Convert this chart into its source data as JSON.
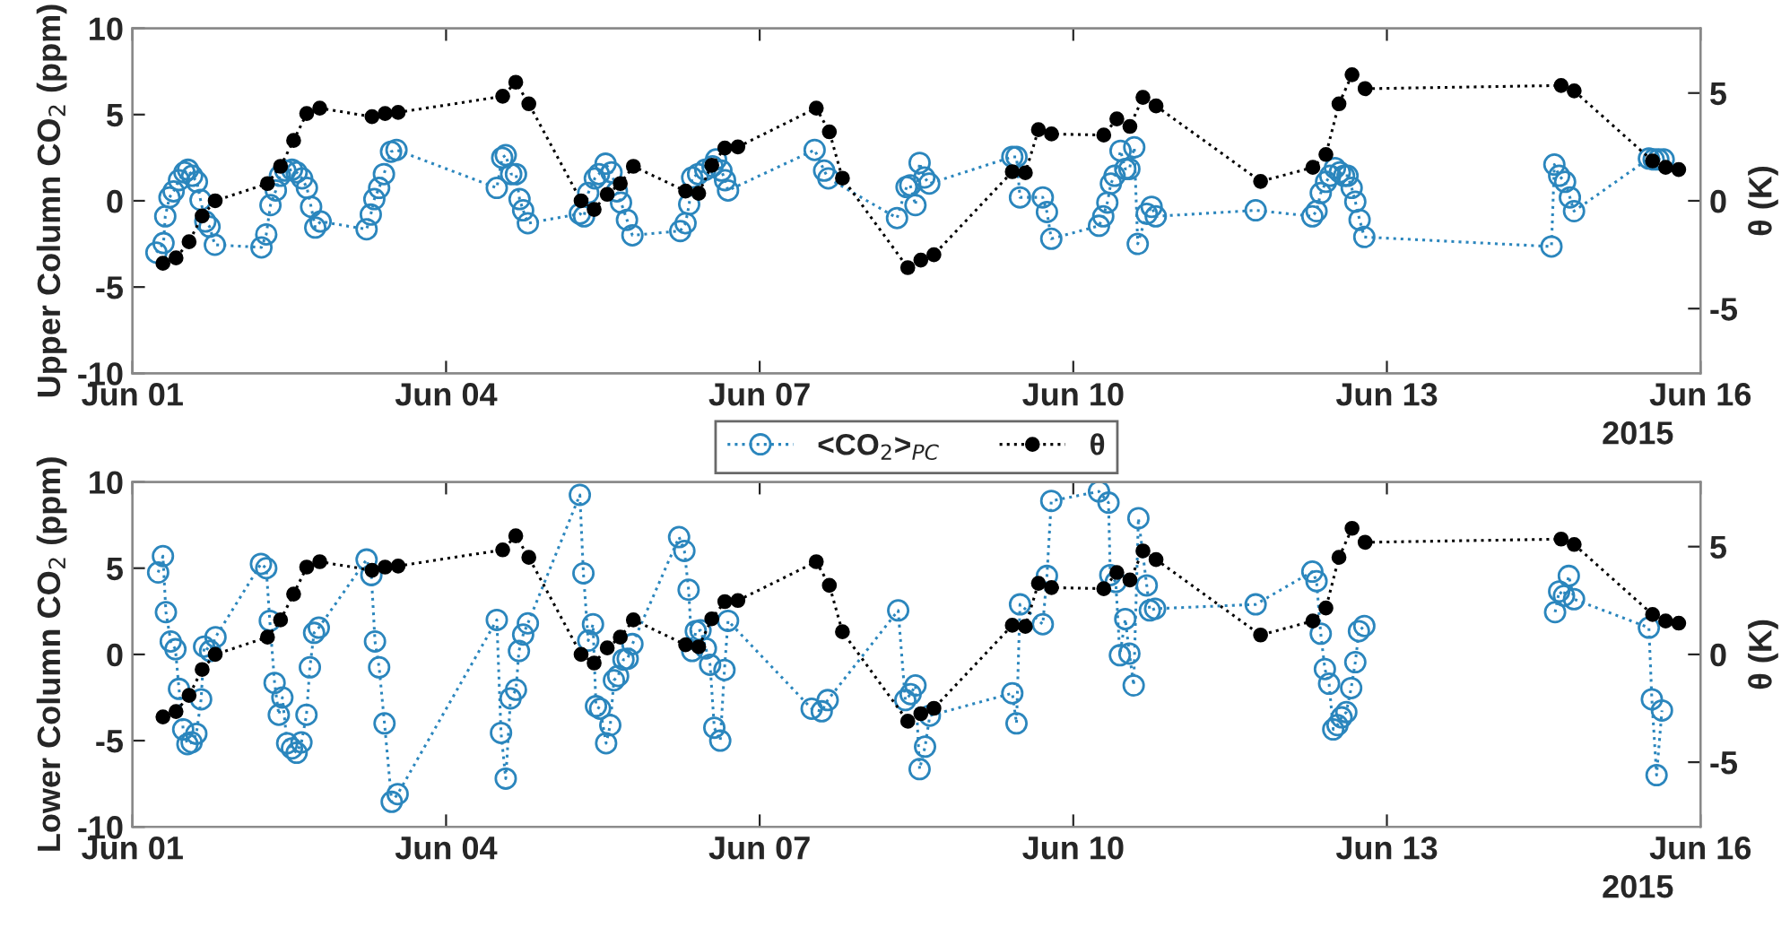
{
  "chart_data": [
    {
      "type": "line",
      "ylabel": "Upper Column CO$_{2}$ (ppm)",
      "y2label": "θ (K)",
      "annotations": [
        "2015"
      ],
      "xlim": [
        "2015-06-01",
        "2015-06-16"
      ],
      "xticks": [
        {
          "value": "2015-06-01",
          "label": "Jun 01"
        },
        {
          "value": "2015-06-04",
          "label": "Jun 04"
        },
        {
          "value": "2015-06-07",
          "label": "Jun 07"
        },
        {
          "value": "2015-06-10",
          "label": "Jun 10"
        },
        {
          "value": "2015-06-13",
          "label": "Jun 13"
        },
        {
          "value": "2015-06-16",
          "label": "Jun 16"
        }
      ],
      "ylim": [
        -10,
        10
      ],
      "yticks": [
        -10,
        -5,
        0,
        5,
        10
      ],
      "y2lim": [
        -8,
        8
      ],
      "y2ticks": [
        -5,
        0,
        5
      ],
      "grid": false,
      "legend": false,
      "marker": "circle",
      "line_style": "dotted",
      "series": [
        {
          "color": "#2b86bd",
          "x": [
            "2015-06-01T05:30",
            "2015-06-01T07:08",
            "2015-06-01T07:32",
            "2015-06-01T08:30",
            "2015-06-01T09:27",
            "2015-06-01T10:41",
            "2015-06-01T11:56",
            "2015-06-01T12:45",
            "2015-06-01T13:42",
            "2015-06-01T14:48",
            "2015-06-01T15:38",
            "2015-06-01T16:44",
            "2015-06-01T17:42",
            "2015-06-01T18:55",
            "2015-06-02T05:37",
            "2015-06-02T06:43",
            "2015-06-02T07:41",
            "2015-06-02T08:55",
            "2015-06-02T09:52",
            "2015-06-02T11:06",
            "2015-06-02T12:37",
            "2015-06-02T13:42",
            "2015-06-02T14:57",
            "2015-06-02T16:03",
            "2015-06-02T17:01",
            "2015-06-02T17:58",
            "2015-06-02T19:12",
            "2015-06-03T05:45",
            "2015-06-03T06:43",
            "2015-06-03T07:32",
            "2015-06-03T08:38",
            "2015-06-03T09:44",
            "2015-06-03T11:22",
            "2015-06-03T12:37",
            "2015-06-04T11:39",
            "2015-06-04T12:53",
            "2015-06-04T13:42",
            "2015-06-04T14:57",
            "2015-06-04T16:03",
            "2015-06-04T16:52",
            "2015-06-04T17:42",
            "2015-06-04T18:47",
            "2015-06-05T06:43",
            "2015-06-05T07:41",
            "2015-06-05T08:38",
            "2015-06-05T10:09",
            "2015-06-05T11:06",
            "2015-06-05T12:37",
            "2015-06-05T13:59",
            "2015-06-05T15:13",
            "2015-06-05T16:10",
            "2015-06-05T17:32",
            "2015-06-05T18:47",
            "2015-06-06T05:46",
            "2015-06-06T06:59",
            "2015-06-06T07:49",
            "2015-06-06T08:30",
            "2015-06-06T09:52",
            "2015-06-06T11:31",
            "2015-06-06T13:10",
            "2015-06-06T13:59",
            "2015-06-06T15:13",
            "2015-06-06T16:03",
            "2015-06-06T16:44",
            "2015-06-07T12:37",
            "2015-06-07T14:48",
            "2015-06-07T15:46",
            "2015-06-08T07:32",
            "2015-06-08T09:43",
            "2015-06-08T10:34",
            "2015-06-08T11:46",
            "2015-06-08T12:43",
            "2015-06-08T13:49",
            "2015-06-08T14:56",
            "2015-06-09T10:00",
            "2015-06-09T10:58",
            "2015-06-09T11:46",
            "2015-06-09T17:00",
            "2015-06-09T17:57",
            "2015-06-09T18:57",
            "2015-06-10T05:54",
            "2015-06-10T06:53",
            "2015-06-10T07:49",
            "2015-06-10T08:38",
            "2015-06-10T09:29",
            "2015-06-10T10:51",
            "2015-06-10T11:56",
            "2015-06-10T12:53",
            "2015-06-10T14:00",
            "2015-06-10T14:48",
            "2015-06-10T16:52",
            "2015-06-10T17:59",
            "2015-06-10T18:56",
            "2015-06-11T17:52",
            "2015-06-12T06:53",
            "2015-06-12T07:51",
            "2015-06-12T08:49",
            "2015-06-12T10:02",
            "2015-06-12T10:59",
            "2015-06-12T12:05",
            "2015-06-12T13:12",
            "2015-06-12T14:10",
            "2015-06-12T14:58",
            "2015-06-12T15:55",
            "2015-06-12T16:45",
            "2015-06-12T17:44",
            "2015-06-12T18:49",
            "2015-06-14T13:47",
            "2015-06-14T14:27",
            "2015-06-14T15:33",
            "2015-06-14T16:55",
            "2015-06-14T18:01",
            "2015-06-14T18:58",
            "2015-06-15T12:09",
            "2015-06-15T13:15",
            "2015-06-15T14:20",
            "2015-06-15T15:33"
          ],
          "values": [
            -3.0,
            -2.45,
            -0.9,
            0.2,
            0.55,
            1.2,
            1.65,
            1.8,
            1.45,
            1.1,
            0.05,
            -1.2,
            -1.5,
            -2.55,
            -2.7,
            -1.95,
            -0.25,
            0.6,
            1.45,
            1.75,
            1.8,
            1.65,
            1.3,
            0.75,
            -0.35,
            -1.55,
            -1.2,
            -1.65,
            -0.8,
            0.1,
            0.75,
            1.55,
            2.85,
            2.95,
            0.75,
            2.5,
            2.65,
            1.55,
            1.55,
            0.1,
            -0.55,
            -1.3,
            -0.75,
            -0.9,
            0.45,
            1.3,
            1.55,
            2.15,
            1.65,
            0.55,
            -0.1,
            -1.1,
            -2.0,
            -1.75,
            -1.3,
            -0.2,
            1.35,
            1.55,
            1.8,
            2.0,
            2.4,
            1.75,
            1.2,
            0.6,
            2.95,
            1.75,
            1.3,
            -1.0,
            0.8,
            0.9,
            -0.25,
            2.2,
            1.35,
            1.0,
            2.55,
            2.55,
            0.2,
            0.2,
            -0.65,
            -2.2,
            -1.45,
            -0.9,
            -0.1,
            1.0,
            1.45,
            2.9,
            1.85,
            1.85,
            3.1,
            -2.5,
            -0.75,
            -0.35,
            -0.9,
            -0.55,
            -0.9,
            -0.6,
            0.45,
            1.1,
            1.45,
            1.9,
            1.65,
            1.45,
            1.45,
            0.75,
            -0.05,
            -1.1,
            -2.1,
            -2.65,
            2.1,
            1.45,
            1.1,
            0.2,
            -0.6,
            2.45,
            2.4,
            2.4,
            2.4
          ]
        },
        {
          "color": "#000000",
          "axis": "y2",
          "x": [
            "2015-06-01T07:00",
            "2015-06-01T10:00",
            "2015-06-01T13:00",
            "2015-06-01T16:00",
            "2015-06-01T19:00",
            "2015-06-02T07:00",
            "2015-06-02T10:00",
            "2015-06-02T13:00",
            "2015-06-02T16:00",
            "2015-06-02T19:00",
            "2015-06-03T07:00",
            "2015-06-03T10:00",
            "2015-06-03T13:00",
            "2015-06-04T13:00",
            "2015-06-04T16:00",
            "2015-06-04T19:00",
            "2015-06-05T07:00",
            "2015-06-05T10:00",
            "2015-06-05T13:00",
            "2015-06-05T16:00",
            "2015-06-05T19:00",
            "2015-06-06T07:00",
            "2015-06-06T10:00",
            "2015-06-06T13:00",
            "2015-06-06T16:00",
            "2015-06-06T19:00",
            "2015-06-07T13:00",
            "2015-06-07T16:00",
            "2015-06-07T19:00",
            "2015-06-08T10:00",
            "2015-06-08T13:00",
            "2015-06-08T16:00",
            "2015-06-09T10:00",
            "2015-06-09T13:00",
            "2015-06-09T16:00",
            "2015-06-09T19:00",
            "2015-06-10T07:00",
            "2015-06-10T10:00",
            "2015-06-10T13:00",
            "2015-06-10T16:00",
            "2015-06-10T19:00",
            "2015-06-11T19:00",
            "2015-06-12T07:00",
            "2015-06-12T10:00",
            "2015-06-12T13:00",
            "2015-06-12T16:00",
            "2015-06-12T19:00",
            "2015-06-14T16:00",
            "2015-06-14T19:00",
            "2015-06-15T13:00",
            "2015-06-15T16:00",
            "2015-06-15T19:00"
          ],
          "values": [
            -2.9,
            -2.65,
            -1.9,
            -0.7,
            0.0,
            0.8,
            1.6,
            2.8,
            4.05,
            4.3,
            3.9,
            4.05,
            4.1,
            4.85,
            5.5,
            4.5,
            0.0,
            -0.4,
            0.3,
            0.8,
            1.6,
            0.45,
            0.35,
            1.65,
            2.45,
            2.5,
            4.3,
            3.2,
            1.05,
            -3.1,
            -2.75,
            -2.5,
            1.35,
            1.3,
            3.3,
            3.1,
            3.05,
            3.8,
            3.45,
            4.8,
            4.4,
            0.9,
            1.55,
            2.15,
            4.5,
            5.85,
            5.2,
            5.35,
            5.1,
            1.85,
            1.55,
            1.45
          ]
        }
      ]
    },
    {
      "type": "line",
      "ylabel": "Lower Column CO$_{2}$ (ppm)",
      "y2label": "θ (K)",
      "annotations": [
        "2015"
      ],
      "xlim": [
        "2015-06-01",
        "2015-06-16"
      ],
      "xticks": [
        {
          "value": "2015-06-01",
          "label": "Jun 01"
        },
        {
          "value": "2015-06-04",
          "label": "Jun 04"
        },
        {
          "value": "2015-06-07",
          "label": "Jun 07"
        },
        {
          "value": "2015-06-10",
          "label": "Jun 10"
        },
        {
          "value": "2015-06-13",
          "label": "Jun 13"
        },
        {
          "value": "2015-06-16",
          "label": "Jun 16"
        }
      ],
      "ylim": [
        -10,
        10
      ],
      "yticks": [
        -10,
        -5,
        0,
        5,
        10
      ],
      "y2lim": [
        -8,
        8
      ],
      "y2ticks": [
        -5,
        0,
        5
      ],
      "grid": false,
      "legend": "top",
      "marker": "circle",
      "line_style": "dotted",
      "series": [
        {
          "name": "<CO$_{2}$>$_{PC}$",
          "color": "#2b86bd",
          "x": [
            "2015-06-01T05:54",
            "2015-06-01T07:00",
            "2015-06-01T07:41",
            "2015-06-01T08:47",
            "2015-06-01T09:52",
            "2015-06-01T10:41",
            "2015-06-01T11:39",
            "2015-06-01T12:37",
            "2015-06-01T13:35",
            "2015-06-01T14:40",
            "2015-06-01T15:46",
            "2015-06-01T16:27",
            "2015-06-01T17:50",
            "2015-06-01T19:04",
            "2015-06-02T05:30",
            "2015-06-02T06:43",
            "2015-06-02T07:32",
            "2015-06-02T08:38",
            "2015-06-02T09:36",
            "2015-06-02T10:25",
            "2015-06-02T11:31",
            "2015-06-02T12:37",
            "2015-06-02T13:42",
            "2015-06-02T14:48",
            "2015-06-02T15:57",
            "2015-06-02T16:44",
            "2015-06-02T17:42",
            "2015-06-02T18:47",
            "2015-06-03T05:45",
            "2015-06-03T06:51",
            "2015-06-03T07:41",
            "2015-06-03T08:38",
            "2015-06-03T09:52",
            "2015-06-03T11:31",
            "2015-06-03T12:53",
            "2015-06-04T11:39",
            "2015-06-04T12:37",
            "2015-06-04T13:42",
            "2015-06-04T14:48",
            "2015-06-04T16:03",
            "2015-06-04T16:44",
            "2015-06-04T17:42",
            "2015-06-04T18:47",
            "2015-06-05T06:43",
            "2015-06-05T07:32",
            "2015-06-05T08:38",
            "2015-06-05T09:44",
            "2015-06-05T10:25",
            "2015-06-05T11:22",
            "2015-06-05T12:45",
            "2015-06-05T13:42",
            "2015-06-05T14:32",
            "2015-06-05T15:30",
            "2015-06-05T16:44",
            "2015-06-05T17:42",
            "2015-06-05T18:47",
            "2015-06-06T05:30",
            "2015-06-06T06:43",
            "2015-06-06T07:41",
            "2015-06-06T08:30",
            "2015-06-06T09:20",
            "2015-06-06T10:25",
            "2015-06-06T11:39",
            "2015-06-06T12:37",
            "2015-06-06T13:35",
            "2015-06-06T14:57",
            "2015-06-06T15:55",
            "2015-06-06T16:44",
            "2015-06-07T11:56",
            "2015-06-07T14:15",
            "2015-06-07T15:37",
            "2015-06-08T07:48",
            "2015-06-08T09:26",
            "2015-06-08T10:39",
            "2015-06-08T11:46",
            "2015-06-08T12:43",
            "2015-06-08T13:58",
            "2015-06-08T15:04",
            "2015-06-09T10:00",
            "2015-06-09T10:58",
            "2015-06-09T11:46",
            "2015-06-09T17:00",
            "2015-06-09T17:57",
            "2015-06-09T18:57",
            "2015-06-10T05:54",
            "2015-06-10T08:05",
            "2015-06-10T08:30",
            "2015-06-10T09:45",
            "2015-06-10T10:42",
            "2015-06-10T11:56",
            "2015-06-10T12:53",
            "2015-06-10T13:52",
            "2015-06-10T14:57",
            "2015-06-10T16:52",
            "2015-06-10T17:34",
            "2015-06-10T18:47",
            "2015-06-11T17:52",
            "2015-06-12T06:53",
            "2015-06-12T07:51",
            "2015-06-12T08:49",
            "2015-06-12T09:46",
            "2015-06-12T10:44",
            "2015-06-12T11:41",
            "2015-06-12T12:39",
            "2015-06-12T13:36",
            "2015-06-12T14:41",
            "2015-06-12T15:48",
            "2015-06-12T16:45",
            "2015-06-12T17:35",
            "2015-06-12T18:49",
            "2015-06-13T12:00",
            "2015-06-14T14:37",
            "2015-06-14T15:33",
            "2015-06-14T16:39",
            "2015-06-14T17:46",
            "2015-06-14T18:58",
            "2015-06-15T12:09",
            "2015-06-15T12:50",
            "2015-06-15T13:55",
            "2015-06-15T15:09"
          ],
          "values": [
            4.75,
            5.7,
            2.45,
            0.75,
            0.3,
            -2.0,
            -4.35,
            -5.2,
            -5.1,
            -4.6,
            -2.6,
            0.45,
            0.2,
            1.0,
            5.25,
            5.0,
            1.95,
            -1.65,
            -3.5,
            -2.5,
            -5.15,
            -5.45,
            -5.7,
            -5.1,
            -3.5,
            -0.75,
            1.25,
            1.55,
            5.5,
            4.6,
            0.75,
            -0.75,
            -4.0,
            -8.55,
            -8.1,
            2.0,
            -4.55,
            -7.2,
            -2.55,
            -2.05,
            0.2,
            1.15,
            1.8,
            9.25,
            4.7,
            0.8,
            1.75,
            -3.0,
            -3.15,
            -5.15,
            -4.1,
            -1.5,
            -1.25,
            -0.3,
            -0.25,
            0.6,
            6.8,
            6.0,
            3.75,
            0.2,
            1.35,
            1.4,
            0.35,
            -0.6,
            -4.25,
            -5.0,
            -0.9,
            1.95,
            -3.15,
            -3.3,
            -2.65,
            2.55,
            -2.65,
            -2.3,
            -1.8,
            -6.65,
            -5.35,
            -3.55,
            -2.25,
            -4.0,
            2.9,
            1.75,
            4.55,
            8.9,
            9.45,
            8.8,
            4.6,
            4.2,
            -0.05,
            2.05,
            0.05,
            -1.8,
            7.9,
            4.0,
            2.55,
            2.65,
            2.9,
            4.8,
            4.25,
            1.2,
            -0.85,
            -1.7,
            -4.35,
            -4.1,
            -3.65,
            -3.35,
            -1.95,
            -0.45,
            1.35,
            1.65,
            null,
            2.45,
            3.65,
            3.4,
            4.55,
            3.2,
            1.55,
            -2.6,
            -7.0,
            -3.25
          ]
        },
        {
          "name": "θ",
          "color": "#000000",
          "axis": "y2",
          "x": [
            "2015-06-01T07:00",
            "2015-06-01T10:00",
            "2015-06-01T13:00",
            "2015-06-01T16:00",
            "2015-06-01T19:00",
            "2015-06-02T07:00",
            "2015-06-02T10:00",
            "2015-06-02T13:00",
            "2015-06-02T16:00",
            "2015-06-02T19:00",
            "2015-06-03T07:00",
            "2015-06-03T10:00",
            "2015-06-03T13:00",
            "2015-06-04T13:00",
            "2015-06-04T16:00",
            "2015-06-04T19:00",
            "2015-06-05T07:00",
            "2015-06-05T10:00",
            "2015-06-05T13:00",
            "2015-06-05T16:00",
            "2015-06-05T19:00",
            "2015-06-06T07:00",
            "2015-06-06T10:00",
            "2015-06-06T13:00",
            "2015-06-06T16:00",
            "2015-06-06T19:00",
            "2015-06-07T13:00",
            "2015-06-07T16:00",
            "2015-06-07T19:00",
            "2015-06-08T10:00",
            "2015-06-08T13:00",
            "2015-06-08T16:00",
            "2015-06-09T10:00",
            "2015-06-09T13:00",
            "2015-06-09T16:00",
            "2015-06-09T19:00",
            "2015-06-10T07:00",
            "2015-06-10T10:00",
            "2015-06-10T13:00",
            "2015-06-10T16:00",
            "2015-06-10T19:00",
            "2015-06-11T19:00",
            "2015-06-12T07:00",
            "2015-06-12T10:00",
            "2015-06-12T13:00",
            "2015-06-12T16:00",
            "2015-06-12T19:00",
            "2015-06-14T16:00",
            "2015-06-14T19:00",
            "2015-06-15T13:00",
            "2015-06-15T16:00",
            "2015-06-15T19:00"
          ],
          "values": [
            -2.9,
            -2.65,
            -1.9,
            -0.7,
            0.0,
            0.8,
            1.6,
            2.8,
            4.05,
            4.3,
            3.9,
            4.05,
            4.1,
            4.85,
            5.5,
            4.5,
            0.0,
            -0.4,
            0.3,
            0.8,
            1.6,
            0.45,
            0.35,
            1.65,
            2.45,
            2.5,
            4.3,
            3.2,
            1.05,
            -3.1,
            -2.75,
            -2.5,
            1.35,
            1.3,
            3.3,
            3.1,
            3.05,
            3.8,
            3.45,
            4.8,
            4.4,
            0.9,
            1.55,
            2.15,
            4.5,
            5.85,
            5.2,
            5.35,
            5.1,
            1.85,
            1.55,
            1.45
          ]
        }
      ]
    }
  ]
}
